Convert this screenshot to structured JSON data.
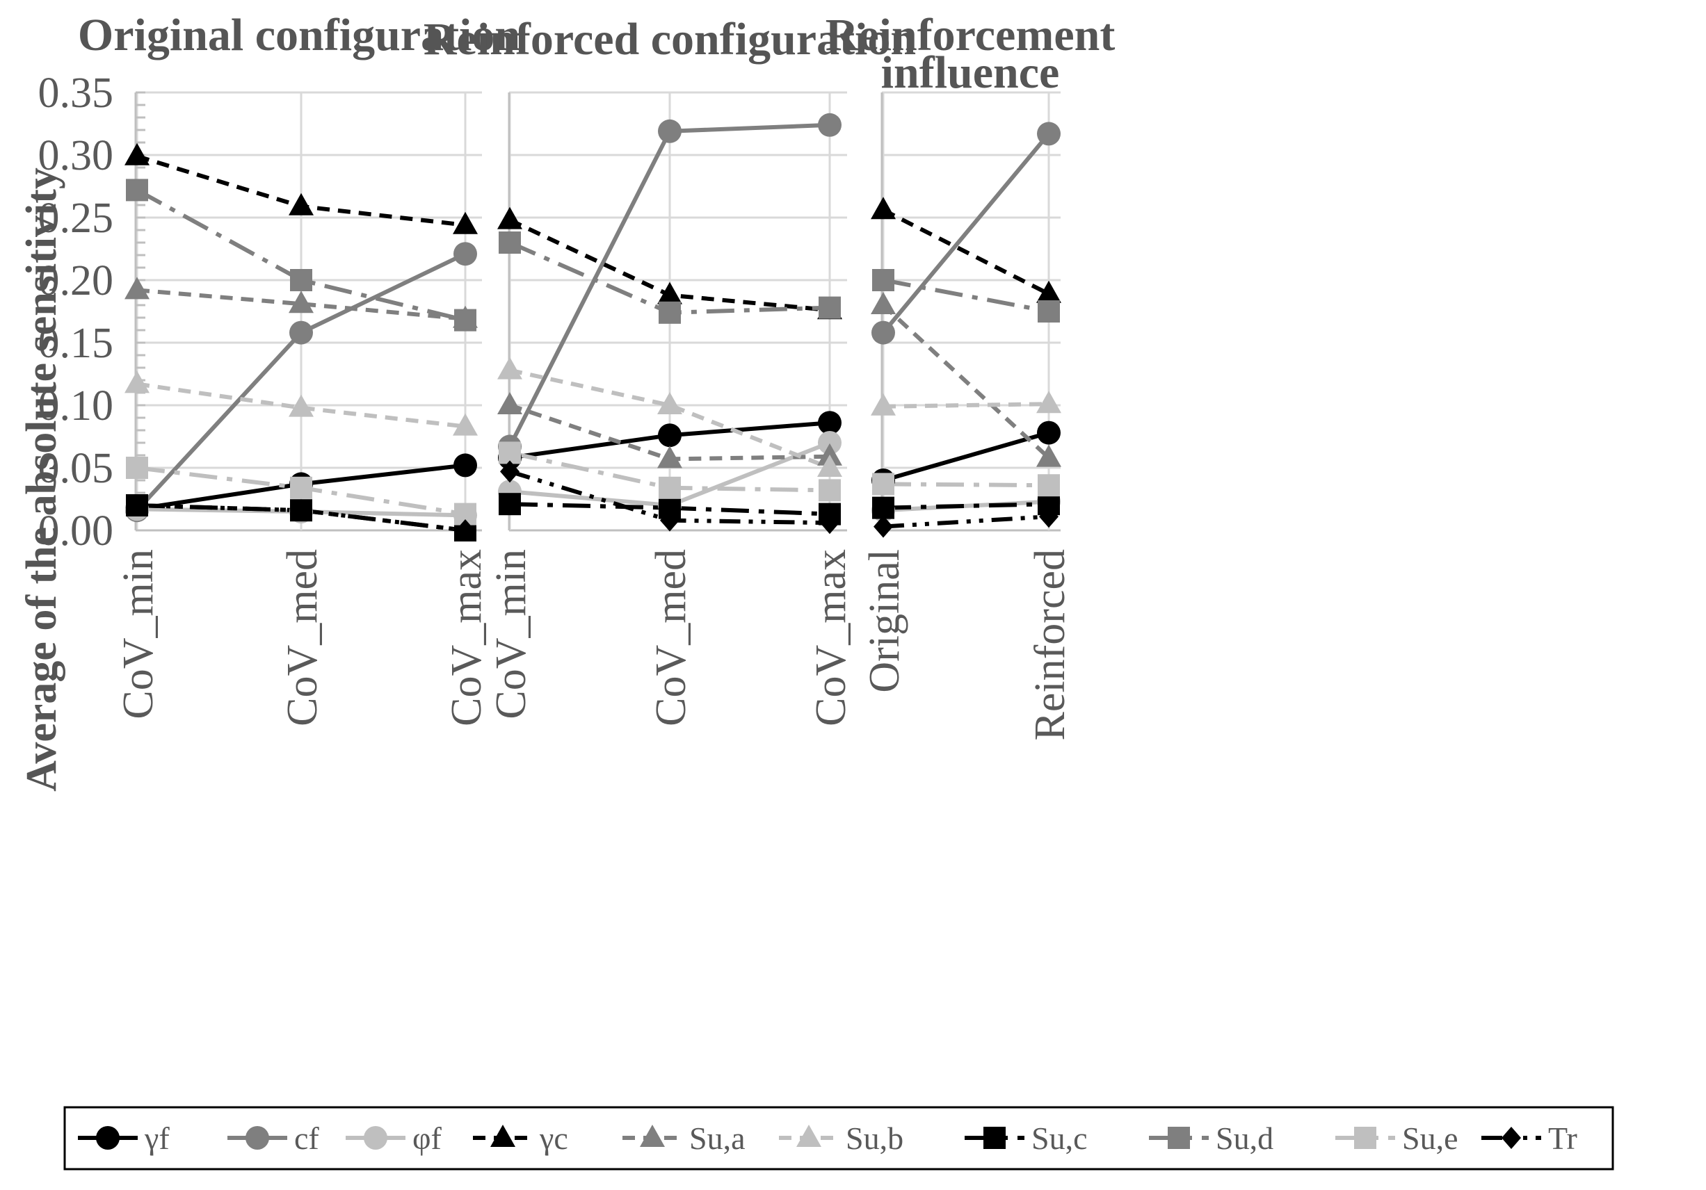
{
  "chart_data": {
    "type": "line",
    "ylabel": "Average of the absolute sensitivity",
    "ylim": [
      0,
      0.35
    ],
    "yticks": [
      "0.00",
      "0.05",
      "0.10",
      "0.15",
      "0.20",
      "0.25",
      "0.30",
      "0.35"
    ],
    "legend_position": "bottom",
    "series_styles": [
      {
        "name": "γf",
        "color": "#000000",
        "dash": "solid",
        "marker": "circle"
      },
      {
        "name": "cf",
        "color": "#7f7f7f",
        "dash": "solid",
        "marker": "circle"
      },
      {
        "name": "φf",
        "color": "#bfbfbf",
        "dash": "solid",
        "marker": "circle"
      },
      {
        "name": "γc",
        "color": "#000000",
        "dash": "dash",
        "marker": "triangle"
      },
      {
        "name": "Su,a",
        "color": "#7f7f7f",
        "dash": "dash",
        "marker": "triangle"
      },
      {
        "name": "Su,b",
        "color": "#bfbfbf",
        "dash": "dash",
        "marker": "triangle"
      },
      {
        "name": "Su,c",
        "color": "#000000",
        "dash": "longdashdot",
        "marker": "square"
      },
      {
        "name": "Su,d",
        "color": "#7f7f7f",
        "dash": "longdashdot",
        "marker": "square"
      },
      {
        "name": "Su,e",
        "color": "#bfbfbf",
        "dash": "longdashdot",
        "marker": "square"
      },
      {
        "name": "Tr",
        "color": "#000000",
        "dash": "dashdotdot",
        "marker": "diamond"
      }
    ],
    "panels": [
      {
        "title": [
          "Original configuration"
        ],
        "categories": [
          "CoV_min",
          "CoV_med",
          "CoV_max"
        ],
        "series": [
          {
            "name": "γf",
            "values": [
              0.017,
              0.037,
              0.052
            ]
          },
          {
            "name": "cf",
            "values": [
              0.016,
              0.158,
              0.221
            ]
          },
          {
            "name": "φf",
            "values": [
              0.017,
              0.015,
              0.012
            ]
          },
          {
            "name": "γc",
            "values": [
              0.299,
              0.259,
              0.244
            ]
          },
          {
            "name": "Su,a",
            "values": [
              0.192,
              0.181,
              0.169
            ]
          },
          {
            "name": "Su,b",
            "values": [
              0.117,
              0.098,
              0.083
            ]
          },
          {
            "name": "Su,c",
            "values": [
              0.02,
              0.016,
              0.0
            ]
          },
          {
            "name": "Su,d",
            "values": [
              0.272,
              0.2,
              0.168
            ]
          },
          {
            "name": "Su,e",
            "values": [
              0.05,
              0.034,
              0.013
            ]
          },
          {
            "name": "Tr",
            "values": [
              0.02,
              0.016,
              0.0
            ]
          }
        ]
      },
      {
        "title": [
          "Reinforced configuration"
        ],
        "categories": [
          "CoV_min",
          "CoV_med",
          "CoV_max"
        ],
        "series": [
          {
            "name": "γf",
            "values": [
              0.058,
              0.076,
              0.086
            ]
          },
          {
            "name": "cf",
            "values": [
              0.067,
              0.319,
              0.324
            ]
          },
          {
            "name": "φf",
            "values": [
              0.031,
              0.02,
              0.07
            ]
          },
          {
            "name": "γc",
            "values": [
              0.248,
              0.188,
              0.176
            ]
          },
          {
            "name": "Su,a",
            "values": [
              0.1,
              0.057,
              0.059
            ]
          },
          {
            "name": "Su,b",
            "values": [
              0.128,
              0.1,
              0.05
            ]
          },
          {
            "name": "Su,c",
            "values": [
              0.021,
              0.018,
              0.013
            ]
          },
          {
            "name": "Su,d",
            "values": [
              0.23,
              0.174,
              0.178
            ]
          },
          {
            "name": "Su,e",
            "values": [
              0.062,
              0.034,
              0.032
            ]
          },
          {
            "name": "Tr",
            "values": [
              0.047,
              0.008,
              0.006
            ]
          }
        ]
      },
      {
        "title": [
          "Reinforcement",
          "influence"
        ],
        "categories": [
          "Original",
          "Reinforced"
        ],
        "series": [
          {
            "name": "γf",
            "values": [
              0.04,
              0.078
            ]
          },
          {
            "name": "cf",
            "values": [
              0.158,
              0.317
            ]
          },
          {
            "name": "φf",
            "values": [
              0.016,
              0.023
            ]
          },
          {
            "name": "γc",
            "values": [
              0.256,
              0.189
            ]
          },
          {
            "name": "Su,a",
            "values": [
              0.18,
              0.058
            ]
          },
          {
            "name": "Su,b",
            "values": [
              0.099,
              0.101
            ]
          },
          {
            "name": "Su,c",
            "values": [
              0.018,
              0.021
            ]
          },
          {
            "name": "Su,d",
            "values": [
              0.2,
              0.175
            ]
          },
          {
            "name": "Su,e",
            "values": [
              0.037,
              0.036
            ]
          },
          {
            "name": "Tr",
            "values": [
              0.003,
              0.011
            ]
          }
        ]
      }
    ]
  }
}
